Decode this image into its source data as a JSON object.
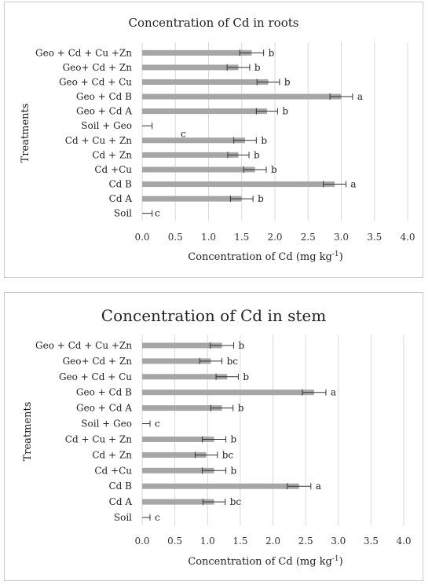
{
  "chart_data": [
    {
      "type": "bar",
      "orientation": "horizontal",
      "title": "Concentration of Cd in roots",
      "xlabel": "Concentration of Cd  (mg kg",
      "xlabel_sup": "-1",
      "xlabel_end": ")",
      "ylabel": "Treatments",
      "xlim": [
        0,
        4.0
      ],
      "xticks": [
        "0.0",
        "0.5",
        "1.0",
        "1.5",
        "2.0",
        "2.5",
        "3.0",
        "3.5",
        "4.0"
      ],
      "grid": true,
      "bar_color": "#a6a6a6",
      "categories": [
        "Geo +  Cd + Cu +Zn",
        "Geo+ Cd + Zn",
        "Geo + Cd + Cu",
        "Geo + Cd B",
        "Geo + Cd A",
        "Soil +  Geo",
        "Cd + Cu + Zn",
        "Cd + Zn",
        "Cd +Cu",
        "Cd B",
        "Cd A",
        "Soil"
      ],
      "values": [
        1.65,
        1.45,
        1.9,
        3.0,
        1.88,
        0.0,
        1.55,
        1.45,
        1.7,
        2.9,
        1.5,
        0.0
      ],
      "errors": [
        0.18,
        0.17,
        0.17,
        0.17,
        0.16,
        0.15,
        0.17,
        0.16,
        0.17,
        0.17,
        0.17,
        0.15
      ],
      "labels": [
        "b",
        "b",
        "b",
        "a",
        "b",
        "",
        "b",
        "b",
        "b",
        "a",
        "b",
        "c"
      ],
      "extra_label": {
        "text": "c",
        "row": 5
      }
    },
    {
      "type": "bar",
      "orientation": "horizontal",
      "title": "Concentration of Cd in stem",
      "xlabel": "Concentration of Cd  (mg kg",
      "xlabel_sup": "-1",
      "xlabel_end": ")",
      "ylabel": "Treatments",
      "xlim": [
        0,
        4.0
      ],
      "xticks": [
        "0.0",
        "0.5",
        "1.0",
        "1.5",
        "2.0",
        "2.5",
        "3.0",
        "3.5",
        "4.0"
      ],
      "grid": true,
      "bar_color": "#a6a6a6",
      "categories": [
        "Geo +  Cd + Cu +Zn",
        "Geo+ Cd + Zn",
        "Geo + Cd + Cu",
        "Geo + Cd B",
        "Geo + Cd A",
        "Soil +  Geo",
        "Cd + Cu + Zn",
        "Cd + Zn",
        "Cd +Cu",
        "Cd B",
        "Cd A",
        "Soil"
      ],
      "values": [
        1.22,
        1.05,
        1.3,
        2.63,
        1.22,
        0.0,
        1.1,
        0.98,
        1.1,
        2.4,
        1.1,
        0.0
      ],
      "errors": [
        0.18,
        0.17,
        0.17,
        0.18,
        0.17,
        0.12,
        0.18,
        0.17,
        0.18,
        0.18,
        0.17,
        0.12
      ],
      "labels": [
        "b",
        "bc",
        "b",
        "a",
        "b",
        "c",
        "b",
        "bc",
        "b",
        "a",
        "bc",
        "c"
      ]
    }
  ]
}
